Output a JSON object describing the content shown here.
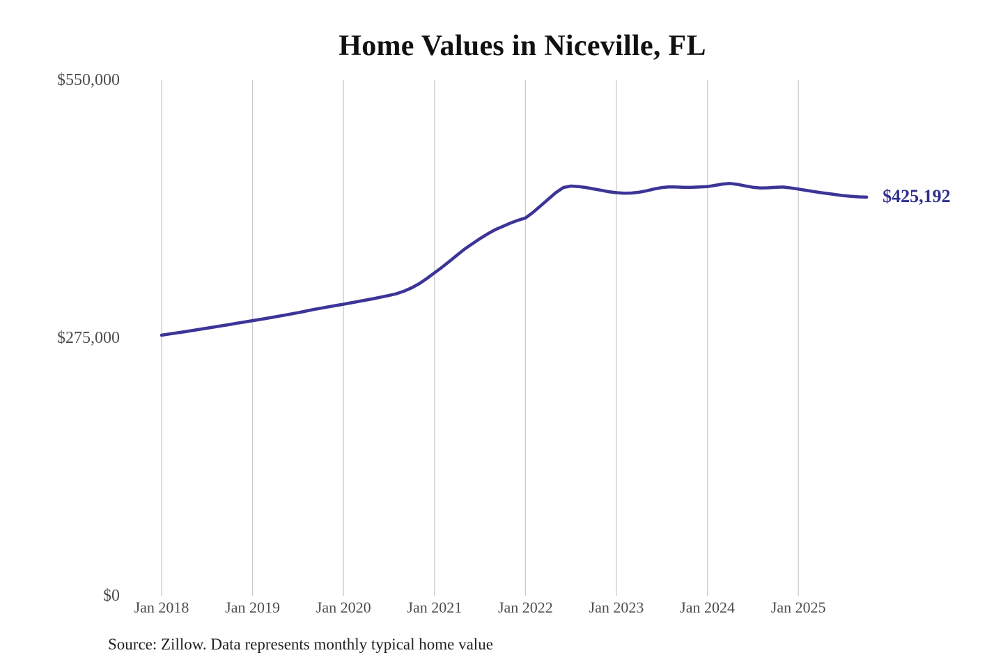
{
  "chart_data": {
    "type": "line",
    "title": "Home Values in Niceville, FL",
    "source_note": "Source: Zillow. Data represents monthly typical home value",
    "end_label": "$425,192",
    "final_value": 425192,
    "x_start": "Jan 2018",
    "x_end": "Oct 2025",
    "x_interval": "monthly",
    "x_tick_labels": [
      "Jan 2018",
      "Jan 2019",
      "Jan 2020",
      "Jan 2021",
      "Jan 2022",
      "Jan 2023",
      "Jan 2024",
      "Jan 2025"
    ],
    "y_tick_labels": [
      "$0",
      "$275,000",
      "$550,000"
    ],
    "y_tick_values": [
      0,
      275000,
      550000
    ],
    "ylim": [
      0,
      550000
    ],
    "grid": "vertical-only",
    "legend": "none",
    "colors": {
      "line": "#3b3597",
      "end_label": "#32308f",
      "gridline": "#cccccc",
      "title": "#111111",
      "axis_label": "#4d4d4d",
      "source": "#222222",
      "background": "#ffffff"
    },
    "series": [
      {
        "name": "Typical home value",
        "values": [
          278000,
          279200,
          280400,
          281600,
          282900,
          284200,
          285500,
          286800,
          288100,
          289400,
          290800,
          292100,
          293500,
          294800,
          296200,
          297600,
          299000,
          300500,
          302000,
          303600,
          305300,
          306700,
          308200,
          309600,
          311000,
          312500,
          314000,
          315500,
          317000,
          318700,
          320400,
          322300,
          325000,
          328500,
          333000,
          338500,
          344500,
          350500,
          357000,
          363500,
          370000,
          375500,
          381000,
          386000,
          390500,
          394000,
          397500,
          400500,
          403000,
          409000,
          416000,
          423000,
          430000,
          435500,
          437000,
          436500,
          435500,
          434000,
          432500,
          431000,
          430000,
          429400,
          429600,
          430500,
          432000,
          434000,
          435500,
          436200,
          436000,
          435600,
          435800,
          436100,
          436400,
          437800,
          439200,
          439800,
          438800,
          437200,
          435800,
          435000,
          435200,
          435800,
          436000,
          435000,
          433800,
          432500,
          431200,
          430000,
          428900,
          427800,
          426800,
          426000,
          425500,
          425192
        ]
      }
    ]
  }
}
